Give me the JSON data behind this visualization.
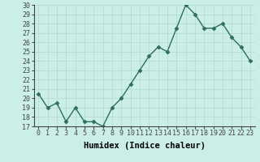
{
  "x": [
    0,
    1,
    2,
    3,
    4,
    5,
    6,
    7,
    8,
    9,
    10,
    11,
    12,
    13,
    14,
    15,
    16,
    17,
    18,
    19,
    20,
    21,
    22,
    23
  ],
  "y": [
    20.5,
    19.0,
    19.5,
    17.5,
    19.0,
    17.5,
    17.5,
    17.0,
    19.0,
    20.0,
    21.5,
    23.0,
    24.5,
    25.5,
    25.0,
    27.5,
    30.0,
    29.0,
    27.5,
    27.5,
    28.0,
    26.5,
    25.5,
    24.0
  ],
  "line_color": "#2d6e5e",
  "marker": "D",
  "marker_color": "#2d6e5e",
  "bg_color": "#cceee8",
  "grid_color": "#b0d8d0",
  "axis_color": "#444444",
  "xlabel": "Humidex (Indice chaleur)",
  "ylim": [
    17,
    30
  ],
  "yticks": [
    17,
    18,
    19,
    20,
    21,
    22,
    23,
    24,
    25,
    26,
    27,
    28,
    29,
    30
  ],
  "xticks": [
    0,
    1,
    2,
    3,
    4,
    5,
    6,
    7,
    8,
    9,
    10,
    11,
    12,
    13,
    14,
    15,
    16,
    17,
    18,
    19,
    20,
    21,
    22,
    23
  ],
  "xlabel_fontsize": 7.5,
  "tick_fontsize": 6.0,
  "line_width": 1.0,
  "marker_size": 2.5
}
